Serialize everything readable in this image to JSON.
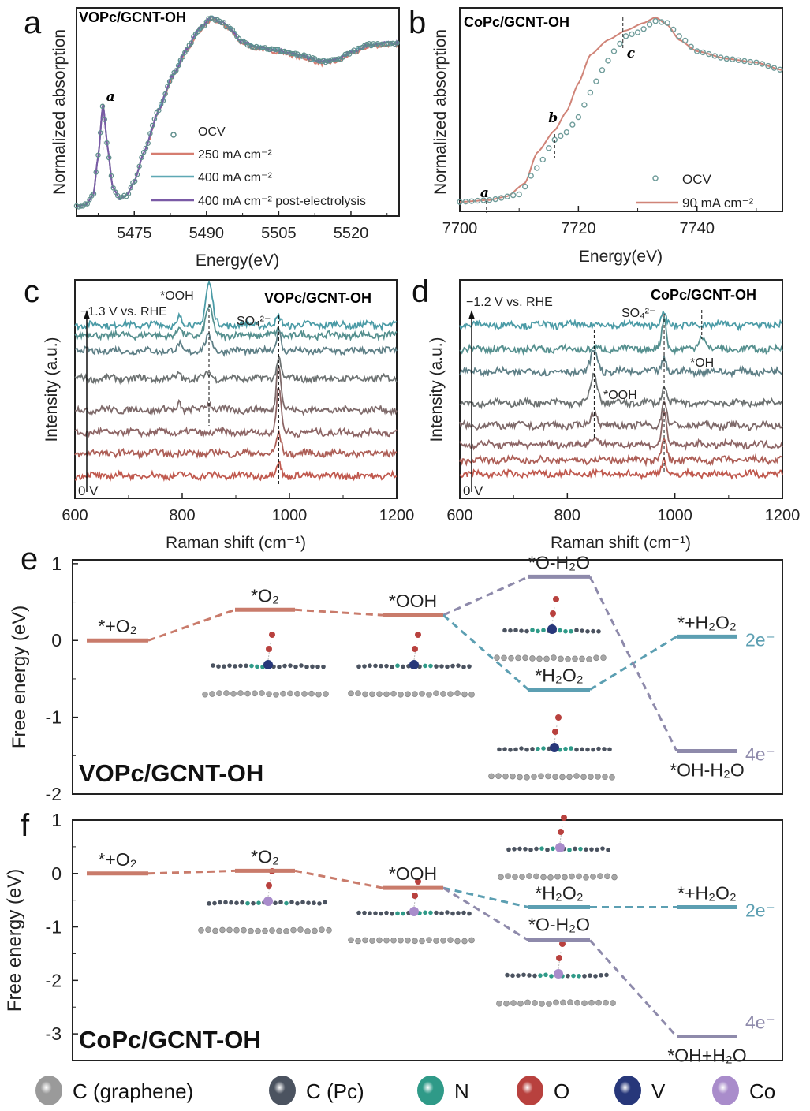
{
  "panel_labels": [
    "a",
    "b",
    "c",
    "d",
    "e",
    "f"
  ],
  "chart_data": [
    {
      "type": "line",
      "title": "VOPc/GCNT-OH",
      "xlabel": "Energy(eV)",
      "ylabel": "Normalized absorption",
      "xlim": [
        5463,
        5530
      ],
      "ylim": [
        -0.03,
        1.05
      ],
      "xticks": [
        5475,
        5490,
        5505,
        5520
      ],
      "annotation": {
        "text": "a",
        "x": 5468.5
      },
      "points": [
        [
          5463,
          0.02
        ],
        [
          5465,
          0.03
        ],
        [
          5466.5,
          0.08
        ],
        [
          5467.5,
          0.28
        ],
        [
          5468.5,
          0.55
        ],
        [
          5469.5,
          0.32
        ],
        [
          5470.5,
          0.12
        ],
        [
          5472,
          0.06
        ],
        [
          5473.5,
          0.08
        ],
        [
          5475,
          0.15
        ],
        [
          5477,
          0.3
        ],
        [
          5480,
          0.52
        ],
        [
          5483,
          0.7
        ],
        [
          5486,
          0.84
        ],
        [
          5488.5,
          0.94
        ],
        [
          5491,
          1.0
        ],
        [
          5493,
          0.98
        ],
        [
          5495,
          0.94
        ],
        [
          5497,
          0.88
        ],
        [
          5500,
          0.85
        ],
        [
          5505,
          0.83
        ],
        [
          5510,
          0.8
        ],
        [
          5514,
          0.77
        ],
        [
          5517,
          0.78
        ],
        [
          5520,
          0.82
        ],
        [
          5524,
          0.86
        ],
        [
          5530,
          0.87
        ]
      ],
      "series": [
        {
          "name": "OCV",
          "color": "#5f8e8c",
          "style": "markers"
        },
        {
          "name": "250 mA cm⁻²",
          "color": "#d67d70",
          "style": "line"
        },
        {
          "name": "400 mA cm⁻²",
          "color": "#5ea8b4",
          "style": "line"
        },
        {
          "name": "400 mA cm⁻² post-electrolysis",
          "color": "#7a5aa6",
          "style": "line"
        }
      ]
    },
    {
      "type": "line",
      "title": "CoPc/GCNT-OH",
      "xlabel": "Energy(eV)",
      "ylabel": "Normalized absorption",
      "xlim": [
        7700,
        7754.4
      ],
      "ylim": [
        -0.03,
        1.05
      ],
      "xticks": [
        7700,
        7720,
        7740
      ],
      "annotations": [
        {
          "text": "a",
          "x": 7704.5
        },
        {
          "text": "b",
          "x": 7716
        },
        {
          "text": "c",
          "x": 7727.5
        }
      ],
      "series": [
        {
          "name": "OCV",
          "color": "#6f9c9a",
          "style": "markers",
          "points": [
            [
              7700,
              0.02
            ],
            [
              7705,
              0.03
            ],
            [
              7710,
              0.06
            ],
            [
              7713,
              0.2
            ],
            [
              7716,
              0.35
            ],
            [
              7718,
              0.39
            ],
            [
              7720,
              0.47
            ],
            [
              7722,
              0.6
            ],
            [
              7724,
              0.72
            ],
            [
              7726,
              0.82
            ],
            [
              7728,
              0.9
            ],
            [
              7730,
              0.92
            ],
            [
              7733,
              0.98
            ],
            [
              7735,
              0.97
            ],
            [
              7737,
              0.9
            ],
            [
              7740,
              0.82
            ],
            [
              7745,
              0.78
            ],
            [
              7750,
              0.76
            ],
            [
              7754.4,
              0.72
            ]
          ]
        },
        {
          "name": "90 mA cm⁻²",
          "color": "#d08478",
          "style": "line",
          "points": [
            [
              7700,
              0.02
            ],
            [
              7705,
              0.03
            ],
            [
              7708,
              0.05
            ],
            [
              7711,
              0.12
            ],
            [
              7713,
              0.28
            ],
            [
              7716,
              0.4
            ],
            [
              7718,
              0.5
            ],
            [
              7720,
              0.65
            ],
            [
              7722,
              0.8
            ],
            [
              7725,
              0.88
            ],
            [
              7728,
              0.93
            ],
            [
              7731,
              0.97
            ],
            [
              7733,
              1.0
            ],
            [
              7735,
              0.96
            ],
            [
              7737,
              0.88
            ],
            [
              7740,
              0.82
            ],
            [
              7745,
              0.78
            ],
            [
              7750,
              0.76
            ],
            [
              7754.4,
              0.72
            ]
          ]
        }
      ]
    },
    {
      "type": "line",
      "title": "VOPc/GCNT-OH",
      "xlabel": "Raman shift (cm⁻¹)",
      "ylabel": "Intensity (a.u.)",
      "xlim": [
        600,
        1200
      ],
      "xticks": [
        600,
        800,
        1000,
        1200
      ],
      "potential_top": "−1.3 V vs. RHE",
      "potential_bottom": "0 V",
      "peak_labels": [
        {
          "text": "*OOH",
          "x": 850
        },
        {
          "text": "SO₄²⁻",
          "x": 980
        }
      ],
      "spectra": [
        {
          "offset": 10.0,
          "color": "#4b9ba6",
          "peaks": [
            [
              795,
              0.5
            ],
            [
              850,
              2.4
            ],
            [
              980,
              0.4
            ]
          ]
        },
        {
          "offset": 9.4,
          "color": "#56908f",
          "peaks": [
            [
              795,
              0.5
            ],
            [
              850,
              1.6
            ],
            [
              980,
              0.3
            ]
          ]
        },
        {
          "offset": 8.5,
          "color": "#5e7f86",
          "peaks": [
            [
              795,
              0.4
            ],
            [
              850,
              0.8
            ],
            [
              980,
              1.2
            ]
          ]
        },
        {
          "offset": 6.9,
          "color": "#6d7272",
          "peaks": [
            [
              795,
              0.4
            ],
            [
              850,
              0.3
            ],
            [
              980,
              1.2
            ]
          ]
        },
        {
          "offset": 5.1,
          "color": "#7e6a6a",
          "peaks": [
            [
              795,
              0.5
            ],
            [
              850,
              0.4
            ],
            [
              980,
              2.7
            ]
          ]
        },
        {
          "offset": 3.8,
          "color": "#8d6565",
          "peaks": [
            [
              980,
              2.6
            ]
          ]
        },
        {
          "offset": 2.6,
          "color": "#ad5f57",
          "peaks": [
            [
              980,
              1.1
            ]
          ]
        },
        {
          "offset": 1.3,
          "color": "#c0594e",
          "peaks": [
            [
              980,
              0.8
            ]
          ]
        }
      ]
    },
    {
      "type": "line",
      "title": "CoPc/GCNT-OH",
      "xlabel": "Raman shift (cm⁻¹)",
      "ylabel": "Intensity (a.u.)",
      "xlim": [
        600,
        1200
      ],
      "xticks": [
        600,
        800,
        1000,
        1200
      ],
      "potential_top": "−1.2 V vs. RHE",
      "potential_bottom": "0 V",
      "peak_labels": [
        {
          "text": "SO₄²⁻",
          "x": 980
        },
        {
          "text": "*OH",
          "x": 1050
        },
        {
          "text": "*OOH",
          "x": 850
        }
      ],
      "spectra": [
        {
          "offset": 10.0,
          "color": "#4b9ba6",
          "peaks": [
            [
              980,
              0.6
            ]
          ]
        },
        {
          "offset": 8.6,
          "color": "#56908f",
          "peaks": [
            [
              980,
              1.8
            ],
            [
              1050,
              0.8
            ]
          ]
        },
        {
          "offset": 7.3,
          "color": "#5e7f86",
          "peaks": [
            [
              850,
              1.2
            ],
            [
              980,
              0.8
            ]
          ]
        },
        {
          "offset": 5.5,
          "color": "#6d7272",
          "peaks": [
            [
              850,
              1.6
            ],
            [
              980,
              1.0
            ]
          ]
        },
        {
          "offset": 4.2,
          "color": "#7e6a6a",
          "peaks": [
            [
              850,
              0.8
            ],
            [
              980,
              1.5
            ]
          ]
        },
        {
          "offset": 3.1,
          "color": "#8d6565",
          "peaks": [
            [
              850,
              0.5
            ],
            [
              980,
              1.8
            ]
          ]
        },
        {
          "offset": 2.2,
          "color": "#ad5f57",
          "peaks": [
            [
              980,
              1.3
            ]
          ]
        },
        {
          "offset": 1.4,
          "color": "#c0594e",
          "peaks": [
            [
              980,
              0.8
            ]
          ]
        }
      ]
    },
    {
      "type": "line",
      "title": "VOPc/GCNT-OH",
      "ylabel": "Free energy (eV)",
      "ylim": [
        -2,
        1.05
      ],
      "yticks": [
        1,
        0,
        -1,
        -2
      ],
      "levels": [
        {
          "label": "*+O₂",
          "value": 0.0,
          "step": 0,
          "color": "#c97b6b"
        },
        {
          "label": "*O₂",
          "value": 0.4,
          "step": 1,
          "color": "#c97b6b"
        },
        {
          "label": "*OOH",
          "value": 0.33,
          "step": 2,
          "color": "#c97b6b"
        },
        {
          "label": "*O-H₂O",
          "value": 0.83,
          "step": 3,
          "color": "#8e8aab"
        },
        {
          "label": "*H₂O₂",
          "value": -0.64,
          "step": 3,
          "color": "#5c9fb2"
        },
        {
          "label": "*+H₂O₂",
          "value": 0.05,
          "step": 4,
          "color": "#5c9fb2"
        },
        {
          "label": "*OH-H₂O",
          "value": -1.44,
          "step": 4,
          "color": "#8e8aab"
        }
      ],
      "links": [
        [
          0,
          1,
          "#c97b6b"
        ],
        [
          1,
          2,
          "#c97b6b"
        ],
        [
          2,
          3,
          "#8e8aab"
        ],
        [
          2,
          4,
          "#5c9fb2"
        ],
        [
          4,
          5,
          "#5c9fb2"
        ],
        [
          3,
          6,
          "#8e8aab"
        ]
      ],
      "pathway_labels": [
        {
          "text": "2e⁻",
          "level": 5,
          "color": "#5c9fb2"
        },
        {
          "text": "4e⁻",
          "level": 6,
          "color": "#8e8aab"
        }
      ]
    },
    {
      "type": "line",
      "title": "CoPc/GCNT-OH",
      "ylabel": "Free energy (eV)",
      "ylim": [
        -3.5,
        1
      ],
      "yticks": [
        1,
        0,
        -1,
        -2,
        -3
      ],
      "levels": [
        {
          "label": "*+O₂",
          "value": 0.0,
          "step": 0,
          "color": "#c97b6b"
        },
        {
          "label": "*O₂",
          "value": 0.05,
          "step": 1,
          "color": "#c97b6b"
        },
        {
          "label": "*OOH",
          "value": -0.27,
          "step": 2,
          "color": "#c97b6b"
        },
        {
          "label": "*H₂O₂",
          "value": -0.63,
          "step": 3,
          "color": "#5c9fb2"
        },
        {
          "label": "*O-H₂O",
          "value": -1.25,
          "step": 3,
          "color": "#8e8aab"
        },
        {
          "label": "*+H₂O₂",
          "value": -0.63,
          "step": 4,
          "color": "#5c9fb2"
        },
        {
          "label": "*OH+H₂O",
          "value": -3.05,
          "step": 4,
          "color": "#8e8aab"
        }
      ],
      "links": [
        [
          0,
          1,
          "#c97b6b"
        ],
        [
          1,
          2,
          "#c97b6b"
        ],
        [
          2,
          3,
          "#5c9fb2"
        ],
        [
          2,
          4,
          "#8e8aab"
        ],
        [
          3,
          5,
          "#5c9fb2"
        ],
        [
          4,
          6,
          "#8e8aab"
        ]
      ],
      "pathway_labels": [
        {
          "text": "2e⁻",
          "level": 5,
          "color": "#5c9fb2"
        },
        {
          "text": "4e⁻",
          "level": 6,
          "color": "#8e8aab"
        }
      ]
    }
  ],
  "atom_legend": [
    {
      "label": "C (graphene)",
      "color": "#9a9a9a"
    },
    {
      "label": "C (Pc)",
      "color": "#4b5360"
    },
    {
      "label": "N",
      "color": "#2f9a88"
    },
    {
      "label": "O",
      "color": "#b8413e"
    },
    {
      "label": "V",
      "color": "#27377a"
    },
    {
      "label": "Co",
      "color": "#a98ccb"
    }
  ]
}
